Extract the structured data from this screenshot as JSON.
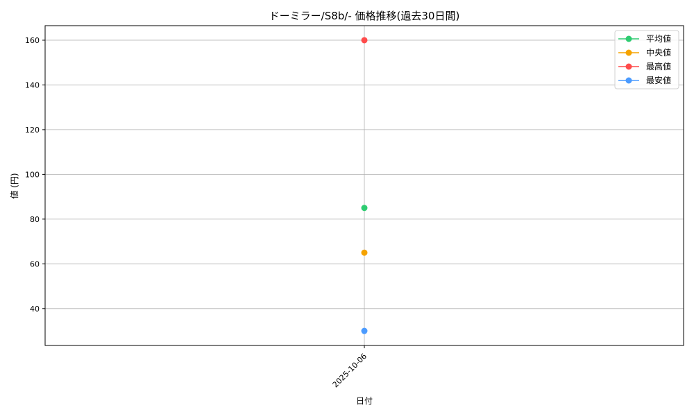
{
  "chart_data": {
    "type": "line",
    "title": "ドーミラー/S8b/- 価格推移(過去30日間)",
    "xlabel": "日付",
    "ylabel": "値 (円)",
    "categories": [
      "2025-10-06"
    ],
    "ylim": [
      23.5,
      166.5
    ],
    "yticks": [
      40,
      60,
      80,
      100,
      120,
      140,
      160
    ],
    "grid": true,
    "legend_position": "top-right",
    "series": [
      {
        "name": "平均値",
        "values": [
          85
        ],
        "color": "#2ecc71"
      },
      {
        "name": "中央値",
        "values": [
          65
        ],
        "color": "#f5a300"
      },
      {
        "name": "最高値",
        "values": [
          160
        ],
        "color": "#ff4b4b"
      },
      {
        "name": "最安値",
        "values": [
          30
        ],
        "color": "#4b9bff"
      }
    ]
  }
}
